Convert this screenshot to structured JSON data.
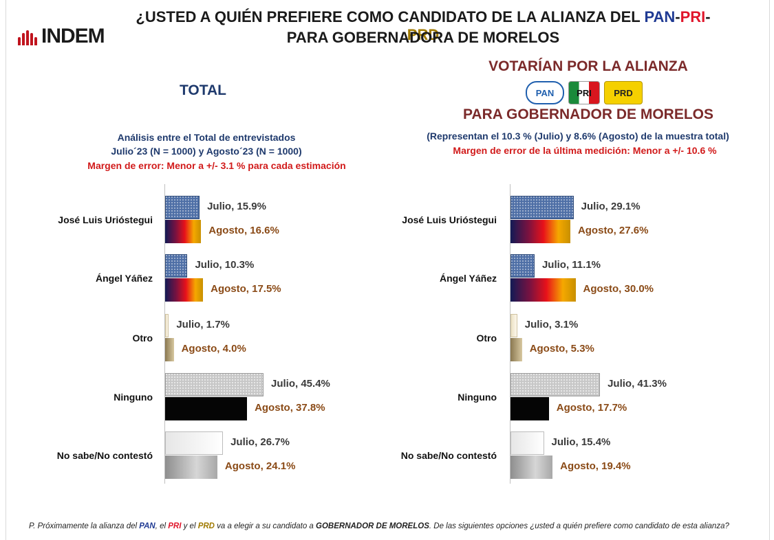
{
  "logo": {
    "text": "INDEM"
  },
  "title": {
    "line1_prefix": "¿USTED A QUIÉN PREFIERE COMO CANDIDATO DE LA ALIANZA DEL ",
    "pan": "PAN",
    "sep1": "-",
    "pri": "PRI",
    "sep2": "-",
    "prd": "PRD",
    "line2": "PARA GOBERNADORA DE MORELOS"
  },
  "left": {
    "title": "TOTAL",
    "info1": "Análisis entre el Total de entrevistados",
    "info2": "Julio´23 (N = 1000) y Agosto´23  (N = 1000)",
    "margin": "Margen de error: Menor a +/- 3.1 %  para cada estimación"
  },
  "right": {
    "title1": "VOTARÍAN POR LA ALIANZA",
    "title2": "PARA GOBERNADOR DE MORELOS",
    "logos": [
      "PAN",
      "PRI",
      "PRD"
    ],
    "info1": "(Representan el 10.3 % (Julio) y 8.6% (Agosto) de la muestra total)",
    "margin": "Margen de error de la última medición: Menor a +/- 10.6 %"
  },
  "chart_data": [
    {
      "type": "bar",
      "title": "TOTAL",
      "categories": [
        "José  Luis Urióstegui",
        "Ángel Yáñez",
        "Otro",
        "Ninguno",
        "No sabe/No contestó"
      ],
      "series": [
        {
          "name": "Julio",
          "values": [
            15.9,
            10.3,
            1.7,
            45.4,
            26.7
          ]
        },
        {
          "name": "Agosto",
          "values": [
            16.6,
            17.5,
            4.0,
            37.8,
            24.1
          ]
        }
      ],
      "labels": {
        "julio": [
          "Julio, 15.9%",
          "Julio, 10.3%",
          "Julio, 1.7%",
          "Julio, 45.4%",
          "Julio, 26.7%"
        ],
        "agosto": [
          "Agosto, 16.6%",
          "Agosto, 17.5%",
          "Agosto, 4.0%",
          "Agosto, 37.8%",
          "Agosto, 24.1%"
        ]
      }
    },
    {
      "type": "bar",
      "title": "VOTARÍAN POR LA ALIANZA",
      "categories": [
        "José  Luis Urióstegui",
        "Ángel Yáñez",
        "Otro",
        "Ninguno",
        "No sabe/No contestó"
      ],
      "series": [
        {
          "name": "Julio",
          "values": [
            29.1,
            11.1,
            3.1,
            41.3,
            15.4
          ]
        },
        {
          "name": "Agosto",
          "values": [
            27.6,
            30.0,
            5.3,
            17.7,
            19.4
          ]
        }
      ],
      "labels": {
        "julio": [
          "Julio, 29.1%",
          "Julio, 11.1%",
          "Julio, 3.1%",
          "Julio, 41.3%",
          "Julio, 15.4%"
        ],
        "agosto": [
          "Agosto, 27.6%",
          "Agosto, 30.0%",
          "Agosto, 5.3%",
          "Agosto, 17.7%",
          "Agosto, 19.4%"
        ]
      }
    }
  ],
  "footnote": {
    "p1": "P. Próximamente la alianza del ",
    "pan": "PAN",
    "p2": ", el ",
    "pri": "PRI",
    "p3": " y el ",
    "prd": "PRD",
    "p4": " va a elegir a su candidato a ",
    "bold": "GOBERNADOR DE MORELOS",
    "p5": ". De las siguientes opciones ¿usted a quién prefiere como candidato de esta alianza?"
  }
}
